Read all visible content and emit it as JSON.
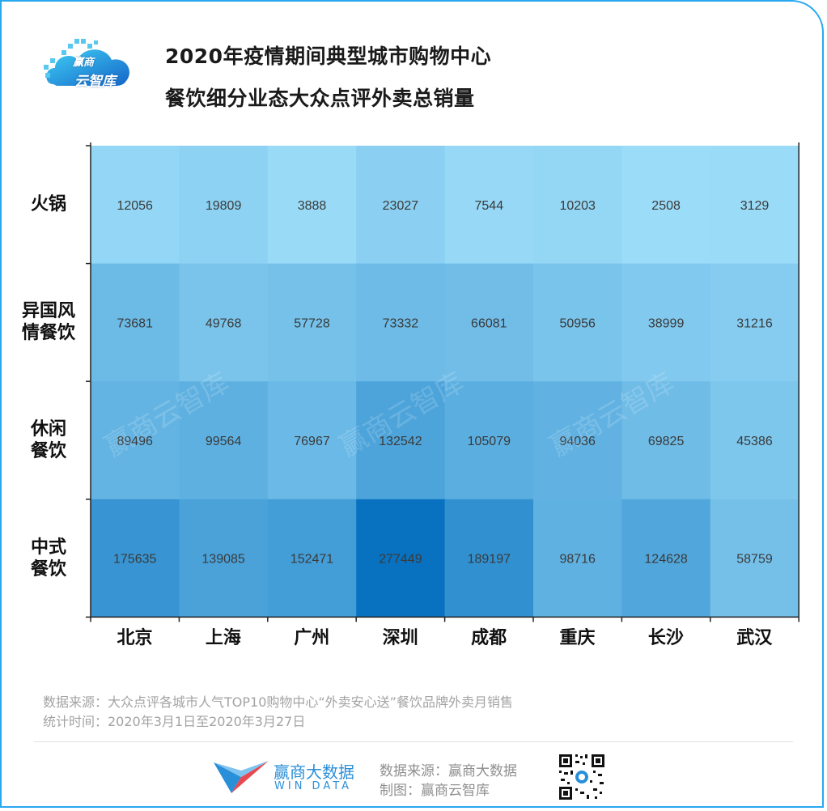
{
  "header": {
    "logo_text_line1": "赢商",
    "logo_text_line2": "云智库",
    "title_line1": "2020年疫情期间典型城市购物中心",
    "title_line2": "餐饮细分业态大众点评外卖总销量"
  },
  "chart_data": {
    "type": "heatmap",
    "title": "2020年疫情期间典型城市购物中心餐饮细分业态大众点评外卖总销量",
    "x_categories": [
      "北京",
      "上海",
      "广州",
      "深圳",
      "成都",
      "重庆",
      "长沙",
      "武汉"
    ],
    "y_categories": [
      {
        "lines": [
          "火锅"
        ]
      },
      {
        "lines": [
          "异国风",
          "情餐饮"
        ]
      },
      {
        "lines": [
          "休闲",
          "餐饮"
        ]
      },
      {
        "lines": [
          "中式",
          "餐饮"
        ]
      }
    ],
    "values": [
      [
        12056,
        19809,
        3888,
        23027,
        7544,
        10203,
        2508,
        3129
      ],
      [
        73681,
        49768,
        57728,
        73332,
        66081,
        50956,
        38999,
        31216
      ],
      [
        89496,
        99564,
        76967,
        132542,
        105079,
        94036,
        69825,
        45386
      ],
      [
        175635,
        139085,
        152471,
        277449,
        189197,
        98716,
        124628,
        58759
      ]
    ],
    "color_scale": [
      "#9bdcf8",
      "#0872c0"
    ],
    "watermark": "赢商云智库"
  },
  "footer": {
    "source_line1": "数据来源：大众点评各城市人气TOP10购物中心“外卖安心送”餐饮品牌外卖月销售",
    "source_line2": "统计时间：2020年3月1日至2020年3月27日",
    "brand_name": "赢商大数据",
    "brand_sub": "WIN DATA",
    "credit_line1": "数据来源：赢商大数据",
    "credit_line2": "制图：赢商云智库"
  },
  "colors": {
    "accent": "#29a8f0",
    "brand_blue": "#2a8fd9"
  }
}
